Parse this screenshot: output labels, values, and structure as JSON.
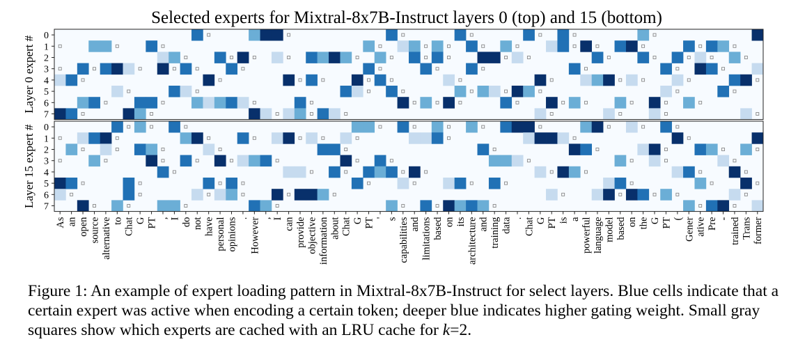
{
  "chart_data": {
    "type": "heatmap",
    "title": "Selected experts for Mixtral-8x7B-Instruct layers 0 (top) and 15 (bottom)",
    "panels": [
      {
        "ylabel": "Layer 0 expert #",
        "yticks": [
          "0",
          "1",
          "2",
          "3",
          "4",
          "5",
          "6",
          "7"
        ]
      },
      {
        "ylabel": "Layer 15 expert #",
        "yticks": [
          "0",
          "1",
          "2",
          "3",
          "4",
          "5",
          "6",
          "7"
        ]
      }
    ],
    "tokens": [
      "As",
      "an",
      "open",
      "source",
      "alternative",
      "to",
      "Chat",
      "G",
      "PT",
      ",",
      "I",
      "do",
      "not",
      "have",
      "personal",
      "opinions",
      ".",
      "However",
      ",",
      "I",
      "can",
      "provide",
      "objective",
      "information",
      "about",
      "Chat",
      "G",
      "PT",
      "'",
      "s",
      "capabilities",
      "and",
      "limitations",
      "based",
      "on",
      "its",
      "architecture",
      "and",
      "training",
      "data",
      ".",
      "Chat",
      "G",
      "PT",
      "is",
      "a",
      "powerful",
      "language",
      "model",
      "based",
      "on",
      "the",
      "G",
      "PT",
      "(",
      "Gener",
      "ative",
      "Pre",
      "-",
      "trained",
      "Trans",
      "former"
    ],
    "colorscale": [
      "#f7fbff",
      "#c6dbef",
      "#6baed6",
      "#2171b5",
      "#08306b"
    ],
    "cache_marker": "small gray square = expert cached in LRU cache (k=2)",
    "note": "cell values are gating weights (0-1) per token per expert; approximated from the image"
  },
  "caption": {
    "prefix": "Figure 1: An example of expert loading pattern in Mixtral-8x7B-Instruct for select layers. Blue cells indicate that a certain expert was active when encoding a certain token; deeper blue indicates higher gating weight. Small gray squares show which experts are cached with an LRU cache for ",
    "k": "k",
    "suffix": "=2."
  }
}
